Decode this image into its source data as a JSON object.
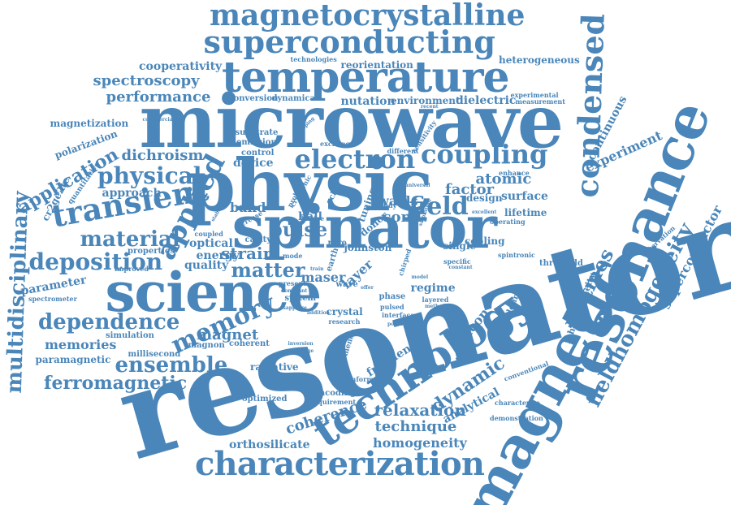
{
  "word_color": "#4a86b9",
  "background": "#ffffff",
  "words": [
    {
      "text": "magnetocrystalline"
    },
    {
      "text": "superconducting"
    },
    {
      "text": "temperature"
    },
    {
      "text": "microwave"
    },
    {
      "text": "physic"
    },
    {
      "text": "spinator"
    },
    {
      "text": "science"
    },
    {
      "text": "resonator"
    },
    {
      "text": "resonance"
    },
    {
      "text": "magnetic"
    },
    {
      "text": "technology"
    },
    {
      "text": "characterization"
    },
    {
      "text": "condensed"
    },
    {
      "text": "fieldhomogeneity"
    },
    {
      "text": "electron"
    },
    {
      "text": "coupling"
    },
    {
      "text": "transient"
    },
    {
      "text": "applied"
    },
    {
      "text": "deposition"
    },
    {
      "text": "material"
    },
    {
      "text": "physical"
    },
    {
      "text": "dependence"
    },
    {
      "text": "memory"
    },
    {
      "text": "ensemble"
    },
    {
      "text": "ferromagnetic"
    },
    {
      "text": "multidisciplinary"
    },
    {
      "text": "application"
    },
    {
      "text": "matmes"
    },
    {
      "text": "superconductor"
    },
    {
      "text": "inhomogeneity"
    },
    {
      "text": "dynamic"
    },
    {
      "text": "relaxation"
    },
    {
      "text": "technique"
    },
    {
      "text": "homogeneity"
    },
    {
      "text": "coherence"
    },
    {
      "text": "frequency"
    },
    {
      "text": "analytical"
    },
    {
      "text": "field"
    },
    {
      "text": "pulse"
    },
    {
      "text": "strain"
    },
    {
      "text": "matter"
    },
    {
      "text": "spectroscopy"
    },
    {
      "text": "performance"
    },
    {
      "text": "cooperativity"
    },
    {
      "text": "magnetization"
    },
    {
      "text": "polarization"
    },
    {
      "text": "dichroism"
    },
    {
      "text": "approach"
    },
    {
      "text": "continuous"
    },
    {
      "text": "experiment"
    },
    {
      "text": "heterogeneous"
    },
    {
      "text": "reorientation"
    },
    {
      "text": "nutation"
    },
    {
      "text": "environment"
    },
    {
      "text": "dielectric"
    },
    {
      "text": "conversion"
    },
    {
      "text": "dynamical"
    },
    {
      "text": "device"
    },
    {
      "text": "memories"
    },
    {
      "text": "paramagnetic"
    },
    {
      "text": "millisecond"
    },
    {
      "text": "orthosilicate"
    },
    {
      "text": "magnet"
    },
    {
      "text": "magnon"
    },
    {
      "text": "silicon"
    },
    {
      "text": "atomic"
    },
    {
      "text": "factor"
    },
    {
      "text": "surface"
    },
    {
      "text": "lifetime"
    },
    {
      "text": "design"
    },
    {
      "text": "tuning"
    },
    {
      "text": "waals"
    },
    {
      "text": "cond"
    },
    {
      "text": "band"
    },
    {
      "text": "hall"
    },
    {
      "text": "optical"
    },
    {
      "text": "energy"
    },
    {
      "text": "quality"
    },
    {
      "text": "cavity"
    },
    {
      "text": "maser"
    },
    {
      "text": "layer"
    },
    {
      "text": "regime"
    },
    {
      "text": "single"
    },
    {
      "text": "cooling"
    },
    {
      "text": "threshold"
    },
    {
      "text": "spintronic"
    },
    {
      "text": "observation"
    },
    {
      "text": "optimized"
    },
    {
      "text": "radiative"
    },
    {
      "text": "encoding"
    },
    {
      "text": "requirement"
    },
    {
      "text": "information"
    },
    {
      "text": "characterize"
    },
    {
      "text": "demonstration"
    },
    {
      "text": "modeling"
    },
    {
      "text": "conventional"
    },
    {
      "text": "phenomenon"
    },
    {
      "text": "coherent"
    },
    {
      "text": "simulation"
    },
    {
      "text": "spectrometer"
    },
    {
      "text": "parameter"
    },
    {
      "text": "properties"
    },
    {
      "text": "improved"
    },
    {
      "text": "quantitative"
    },
    {
      "text": "cr2ge2te"
    },
    {
      "text": "commercial"
    },
    {
      "text": "control"
    },
    {
      "text": "substrate"
    },
    {
      "text": "emission"
    },
    {
      "text": "exchange"
    },
    {
      "text": "different"
    },
    {
      "text": "sensitivity"
    },
    {
      "text": "technologies"
    },
    {
      "text": "experimental"
    },
    {
      "text": "measurement"
    },
    {
      "text": "enhance"
    },
    {
      "text": "excellent"
    },
    {
      "text": "operating"
    },
    {
      "text": "specific"
    },
    {
      "text": "constant"
    },
    {
      "text": "layered"
    },
    {
      "text": "method"
    },
    {
      "text": "system"
    },
    {
      "text": "crystal"
    },
    {
      "text": "research"
    },
    {
      "text": "interface"
    },
    {
      "text": "potential"
    },
    {
      "text": "phase"
    },
    {
      "text": "pulsed"
    },
    {
      "text": "johnston"
    },
    {
      "text": "chirped"
    },
    {
      "text": "model"
    },
    {
      "text": "inversion"
    },
    {
      "text": "challenge"
    },
    {
      "text": "present"
    },
    {
      "text": "increase"
    },
    {
      "text": "lattice"
    },
    {
      "text": "coupled"
    },
    {
      "text": "sapphire"
    },
    {
      "text": "dominant"
    },
    {
      "text": "addition"
    },
    {
      "text": "recent"
    },
    {
      "text": "donor"
    },
    {
      "text": "study"
    },
    {
      "text": "result"
    },
    {
      "text": "rare"
    },
    {
      "text": "earth"
    },
    {
      "text": "echo"
    },
    {
      "text": "wave"
    },
    {
      "text": "offer"
    },
    {
      "text": "mode"
    },
    {
      "text": "train"
    },
    {
      "text": "damping"
    },
    {
      "text": "cryogenic"
    },
    {
      "text": "saturation"
    },
    {
      "text": "universal"
    },
    {
      "text": "stable"
    },
    {
      "text": "probing"
    }
  ]
}
